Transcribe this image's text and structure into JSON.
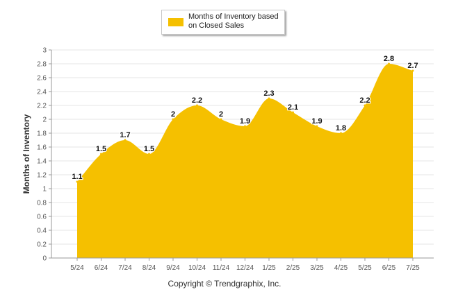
{
  "chart_data": {
    "type": "area",
    "categories": [
      "5/24",
      "6/24",
      "7/24",
      "8/24",
      "9/24",
      "10/24",
      "11/24",
      "12/24",
      "1/25",
      "2/25",
      "3/25",
      "4/25",
      "5/25",
      "6/25",
      "7/25"
    ],
    "series": [
      {
        "name": "Months of Inventory based on Closed Sales",
        "values": [
          1.1,
          1.5,
          1.7,
          1.5,
          2,
          2.2,
          2,
          1.9,
          2.3,
          2.1,
          1.9,
          1.8,
          2.2,
          2.8,
          2.7
        ],
        "color": "#f5c000"
      }
    ],
    "data_labels": [
      "1.1",
      "1.5",
      "1.7",
      "1.5",
      "2",
      "2.2",
      "2",
      "1.9",
      "2.3",
      "2.1",
      "1.9",
      "1.8",
      "2.2",
      "2.8",
      "2.7"
    ],
    "ylabel": "Months of Inventory",
    "ylim": [
      0,
      3
    ],
    "yticks": [
      "0",
      "0.2",
      "0.4",
      "0.6",
      "0.8",
      "1",
      "1.2",
      "1.4",
      "1.6",
      "1.8",
      "2",
      "2.2",
      "2.4",
      "2.6",
      "2.8",
      "3"
    ],
    "grid": true,
    "legend_position": "top-center"
  },
  "legend": {
    "line1": "Months of Inventory based",
    "line2": "on Closed Sales"
  },
  "footer": {
    "copyright": "Copyright © Trendgraphix, Inc."
  }
}
